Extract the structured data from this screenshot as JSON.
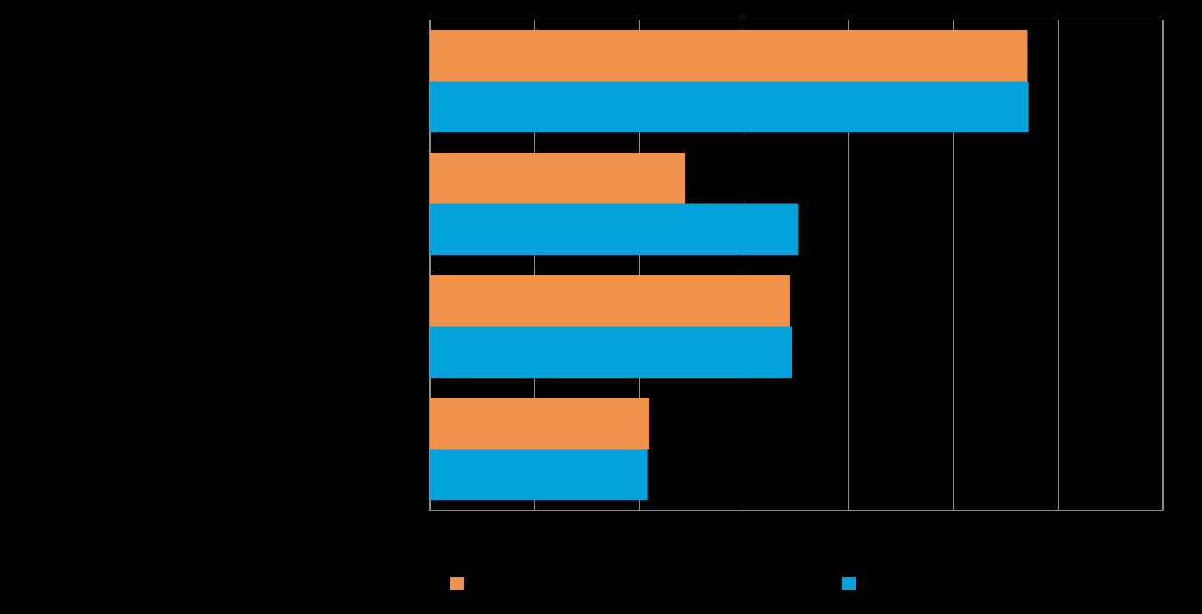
{
  "chart_data": {
    "type": "bar",
    "orientation": "horizontal",
    "title": "",
    "xlabel": "",
    "ylabel": "",
    "categories": [
      "",
      "",
      "",
      ""
    ],
    "xlim": [
      0,
      7
    ],
    "x_ticks": [
      0,
      1,
      2,
      3,
      4,
      5,
      6,
      7
    ],
    "grid": true,
    "legend_position": "bottom",
    "series": [
      {
        "name": "",
        "color": "#F0924B",
        "values": [
          5.71,
          2.44,
          3.44,
          2.1
        ]
      },
      {
        "name": "",
        "color": "#02A3DA",
        "values": [
          5.72,
          3.52,
          3.46,
          2.08
        ]
      }
    ]
  }
}
